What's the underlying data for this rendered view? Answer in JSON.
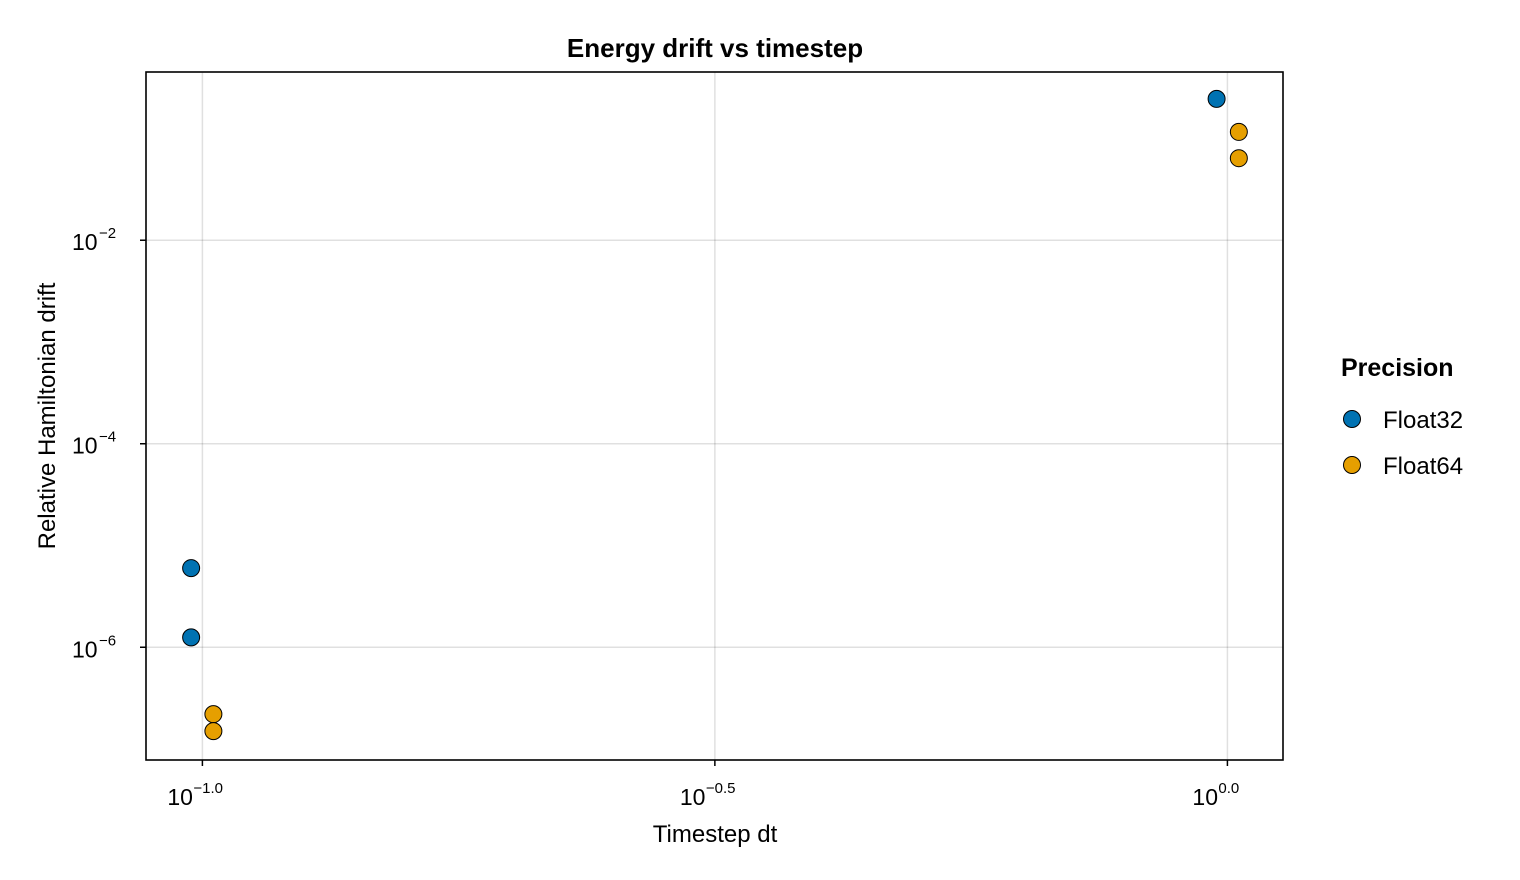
{
  "chart_data": {
    "type": "scatter",
    "title": "Energy drift vs timestep",
    "xlabel": "Timestep dt",
    "ylabel": "Relative Hamiltonian drift",
    "x_scale": "log10",
    "y_scale": "log10",
    "xlim": [
      0.0881,
      1.133
    ],
    "ylim": [
      7.8e-08,
      0.45
    ],
    "grid": true,
    "legend": {
      "title": "Precision",
      "position": "right"
    },
    "x_ticks": [
      {
        "value": 0.1,
        "base": "10",
        "exp": "−1.0"
      },
      {
        "value": 0.3162,
        "base": "10",
        "exp": "−0.5"
      },
      {
        "value": 1.0,
        "base": "10",
        "exp": "0.0"
      }
    ],
    "y_ticks": [
      {
        "value": 0.01,
        "base": "10",
        "exp": "−2"
      },
      {
        "value": 0.0001,
        "base": "10",
        "exp": "−4"
      },
      {
        "value": 1e-06,
        "base": "10",
        "exp": "−6"
      }
    ],
    "series": [
      {
        "name": "Float32",
        "color": "#0072b2",
        "points": [
          {
            "x": 0.0975,
            "y": 6e-06
          },
          {
            "x": 0.0975,
            "y": 1.25e-06
          },
          {
            "x": 0.976,
            "y": 0.245
          }
        ]
      },
      {
        "name": "Float64",
        "color": "#e69f00",
        "points": [
          {
            "x": 0.1025,
            "y": 2.2e-07
          },
          {
            "x": 0.1025,
            "y": 1.5e-07
          },
          {
            "x": 1.026,
            "y": 0.116
          },
          {
            "x": 1.026,
            "y": 0.064
          }
        ]
      }
    ]
  }
}
